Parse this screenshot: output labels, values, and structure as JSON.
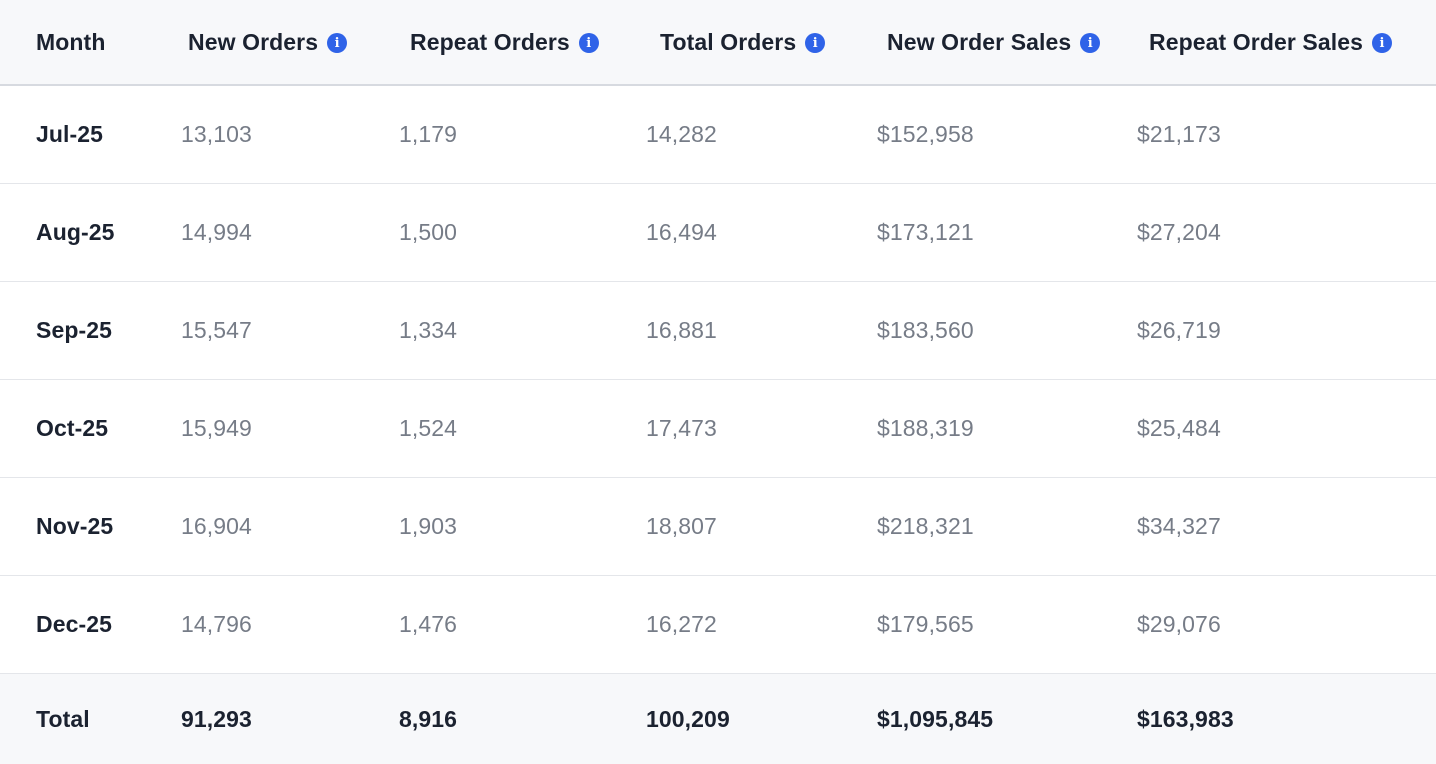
{
  "table": {
    "columns": [
      {
        "label": "Month",
        "info": false
      },
      {
        "label": "New Orders",
        "info": true
      },
      {
        "label": "Repeat Orders",
        "info": true
      },
      {
        "label": "Total Orders",
        "info": true
      },
      {
        "label": "New Order Sales",
        "info": true
      },
      {
        "label": "Repeat Order Sales",
        "info": true
      }
    ],
    "info_icon": "info-icon",
    "info_icon_color": "#2f63e8",
    "rows": [
      {
        "month": "Jul-25",
        "new_orders": "13,103",
        "repeat_orders": "1,179",
        "total_orders": "14,282",
        "new_order_sales": "$152,958",
        "repeat_order_sales": "$21,173"
      },
      {
        "month": "Aug-25",
        "new_orders": "14,994",
        "repeat_orders": "1,500",
        "total_orders": "16,494",
        "new_order_sales": "$173,121",
        "repeat_order_sales": "$27,204"
      },
      {
        "month": "Sep-25",
        "new_orders": "15,547",
        "repeat_orders": "1,334",
        "total_orders": "16,881",
        "new_order_sales": "$183,560",
        "repeat_order_sales": "$26,719"
      },
      {
        "month": "Oct-25",
        "new_orders": "15,949",
        "repeat_orders": "1,524",
        "total_orders": "17,473",
        "new_order_sales": "$188,319",
        "repeat_order_sales": "$25,484"
      },
      {
        "month": "Nov-25",
        "new_orders": "16,904",
        "repeat_orders": "1,903",
        "total_orders": "18,807",
        "new_order_sales": "$218,321",
        "repeat_order_sales": "$34,327"
      },
      {
        "month": "Dec-25",
        "new_orders": "14,796",
        "repeat_orders": "1,476",
        "total_orders": "16,272",
        "new_order_sales": "$179,565",
        "repeat_order_sales": "$29,076"
      }
    ],
    "total": {
      "label": "Total",
      "new_orders": "91,293",
      "repeat_orders": "8,916",
      "total_orders": "100,209",
      "new_order_sales": "$1,095,845",
      "repeat_order_sales": "$163,983"
    }
  }
}
